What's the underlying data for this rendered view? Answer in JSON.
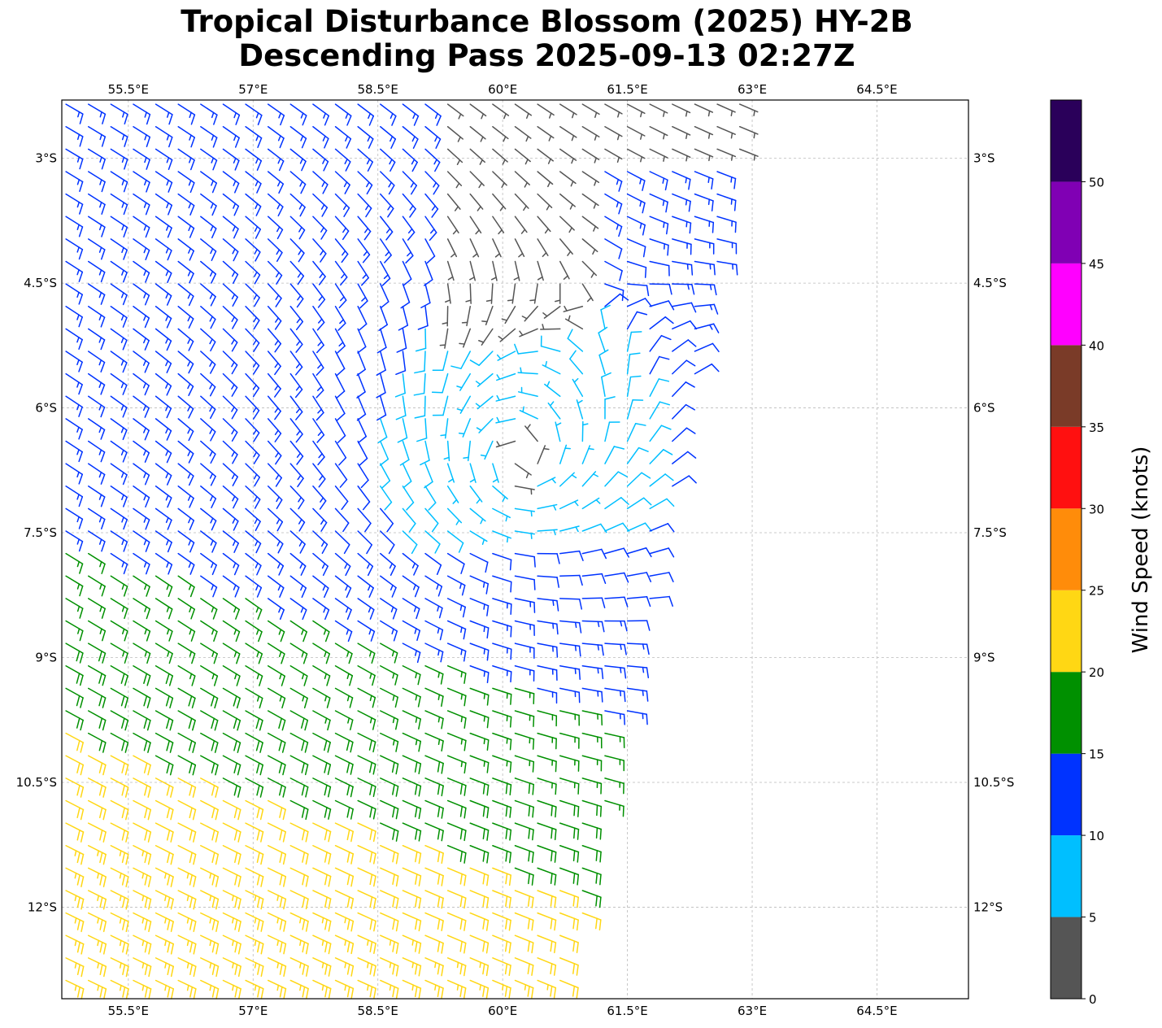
{
  "title": {
    "line1": "Tropical Disturbance Blossom (2025) HY-2B",
    "line2": "Descending Pass 2025-09-13 02:27Z"
  },
  "map": {
    "lon_range": [
      54.7,
      65.6
    ],
    "lat_range": [
      -13.1,
      -2.3
    ],
    "lon_ticks": [
      {
        "value": 55.5,
        "label": "55.5°E"
      },
      {
        "value": 57.0,
        "label": "57°E"
      },
      {
        "value": 58.5,
        "label": "58.5°E"
      },
      {
        "value": 60.0,
        "label": "60°E"
      },
      {
        "value": 61.5,
        "label": "61.5°E"
      },
      {
        "value": 63.0,
        "label": "63°E"
      },
      {
        "value": 64.5,
        "label": "64.5°E"
      }
    ],
    "lat_ticks": [
      {
        "value": -3.0,
        "label": "3°S"
      },
      {
        "value": -4.5,
        "label": "4.5°S"
      },
      {
        "value": -6.0,
        "label": "6°S"
      },
      {
        "value": -7.5,
        "label": "7.5°S"
      },
      {
        "value": -9.0,
        "label": "9°S"
      },
      {
        "value": -10.5,
        "label": "10.5°S"
      },
      {
        "value": -12.0,
        "label": "12°S"
      }
    ],
    "gridlines": true,
    "circulation_center": {
      "lon": 60.2,
      "lat": -6.6
    },
    "swath_east_edge": {
      "north": {
        "lon": 63.0,
        "lat": -2.3
      },
      "south": {
        "lon": 60.8,
        "lat": -13.1
      }
    },
    "wind_units": "knots"
  },
  "colorbar": {
    "label": "Wind Speed (knots)",
    "range": [
      0,
      55
    ],
    "tick_values": [
      0,
      5,
      10,
      15,
      20,
      25,
      30,
      35,
      40,
      45,
      50
    ],
    "tick_labels": [
      "0",
      "5",
      "10",
      "15",
      "20",
      "25",
      "30",
      "35",
      "40",
      "45",
      "50"
    ],
    "bins": [
      {
        "from": 0,
        "to": 5,
        "color": "#555555"
      },
      {
        "from": 5,
        "to": 10,
        "color": "#00bfff"
      },
      {
        "from": 10,
        "to": 15,
        "color": "#0033ff"
      },
      {
        "from": 15,
        "to": 20,
        "color": "#009000"
      },
      {
        "from": 20,
        "to": 25,
        "color": "#ffd714"
      },
      {
        "from": 25,
        "to": 30,
        "color": "#ff8c0a"
      },
      {
        "from": 30,
        "to": 35,
        "color": "#ff1010"
      },
      {
        "from": 35,
        "to": 40,
        "color": "#7a3b28"
      },
      {
        "from": 40,
        "to": 45,
        "color": "#ff00ff"
      },
      {
        "from": 45,
        "to": 50,
        "color": "#8000b4"
      },
      {
        "from": 50,
        "to": 55,
        "color": "#2a005a"
      }
    ]
  }
}
